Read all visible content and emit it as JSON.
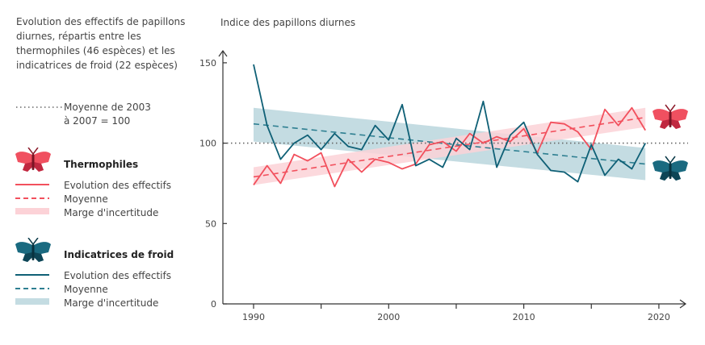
{
  "intro": "Evolution des effectifs de papillons diurnes, répartis entre les thermophiles (46 espèces) et les indicatrices de froid (22 espèces)",
  "legend": {
    "baseline_line1": "Moyenne de 2003",
    "baseline_line2": "à 2007 = 100",
    "thermo": {
      "title": "Thermophiles",
      "evolution": "Evolution des effectifs",
      "mean": "Moyenne",
      "margin": "Marge d'incertitude"
    },
    "cold": {
      "title": "Indicatrices de froid",
      "evolution": "Evolution des effectifs",
      "mean": "Moyenne",
      "margin": "Marge d'incertitude"
    }
  },
  "colors": {
    "thermo_line": "#f2505d",
    "thermo_fill": "#fcd2d7",
    "thermo_icon": "#e03a4c",
    "cold_line": "#0f6076",
    "cold_dash": "#2e7f91",
    "cold_fill": "#c4dce2",
    "cold_icon": "#125d72"
  },
  "chart_data": {
    "type": "line",
    "title": "Indice des papillons diurnes",
    "ylabel": "Indice des papillons diurnes",
    "xlabel": "",
    "xlim": [
      1988,
      2022
    ],
    "ylim": [
      0,
      160
    ],
    "x_ticks": [
      1990,
      1995,
      2000,
      2005,
      2010,
      2015,
      2020
    ],
    "x_tick_labels": [
      "1990",
      "2000",
      "2010",
      "2020"
    ],
    "x_tick_label_values": [
      1990,
      2000,
      2010,
      2020
    ],
    "y_ticks": [
      0,
      50,
      100,
      150
    ],
    "y_tick_labels": [
      "0",
      "50",
      "100",
      "150"
    ],
    "baseline": 100,
    "x": [
      1990,
      1991,
      1992,
      1993,
      1994,
      1995,
      1996,
      1997,
      1998,
      1999,
      2000,
      2001,
      2002,
      2003,
      2004,
      2005,
      2006,
      2007,
      2008,
      2009,
      2010,
      2011,
      2012,
      2013,
      2014,
      2015,
      2016,
      2017,
      2018,
      2019
    ],
    "series": [
      {
        "name": "Thermophiles",
        "values": [
          74,
          86,
          75,
          93,
          89,
          94,
          73,
          90,
          82,
          90,
          88,
          84,
          87,
          99,
          101,
          95,
          106,
          100,
          104,
          101,
          109,
          94,
          113,
          112,
          107,
          96,
          121,
          111,
          122,
          108
        ],
        "trend": [
          79,
          116
        ],
        "band_start": [
          74,
          85
        ],
        "band_end": [
          110,
          122
        ]
      },
      {
        "name": "Indicatrices de froid",
        "values": [
          149,
          111,
          90,
          100,
          105,
          96,
          106,
          98,
          96,
          111,
          102,
          124,
          86,
          90,
          85,
          103,
          96,
          126,
          85,
          105,
          113,
          93,
          83,
          82,
          76,
          99,
          80,
          90,
          84,
          100
        ],
        "trend": [
          112,
          87
        ],
        "band_start": [
          101,
          122
        ],
        "band_end": [
          77,
          97
        ]
      }
    ]
  }
}
